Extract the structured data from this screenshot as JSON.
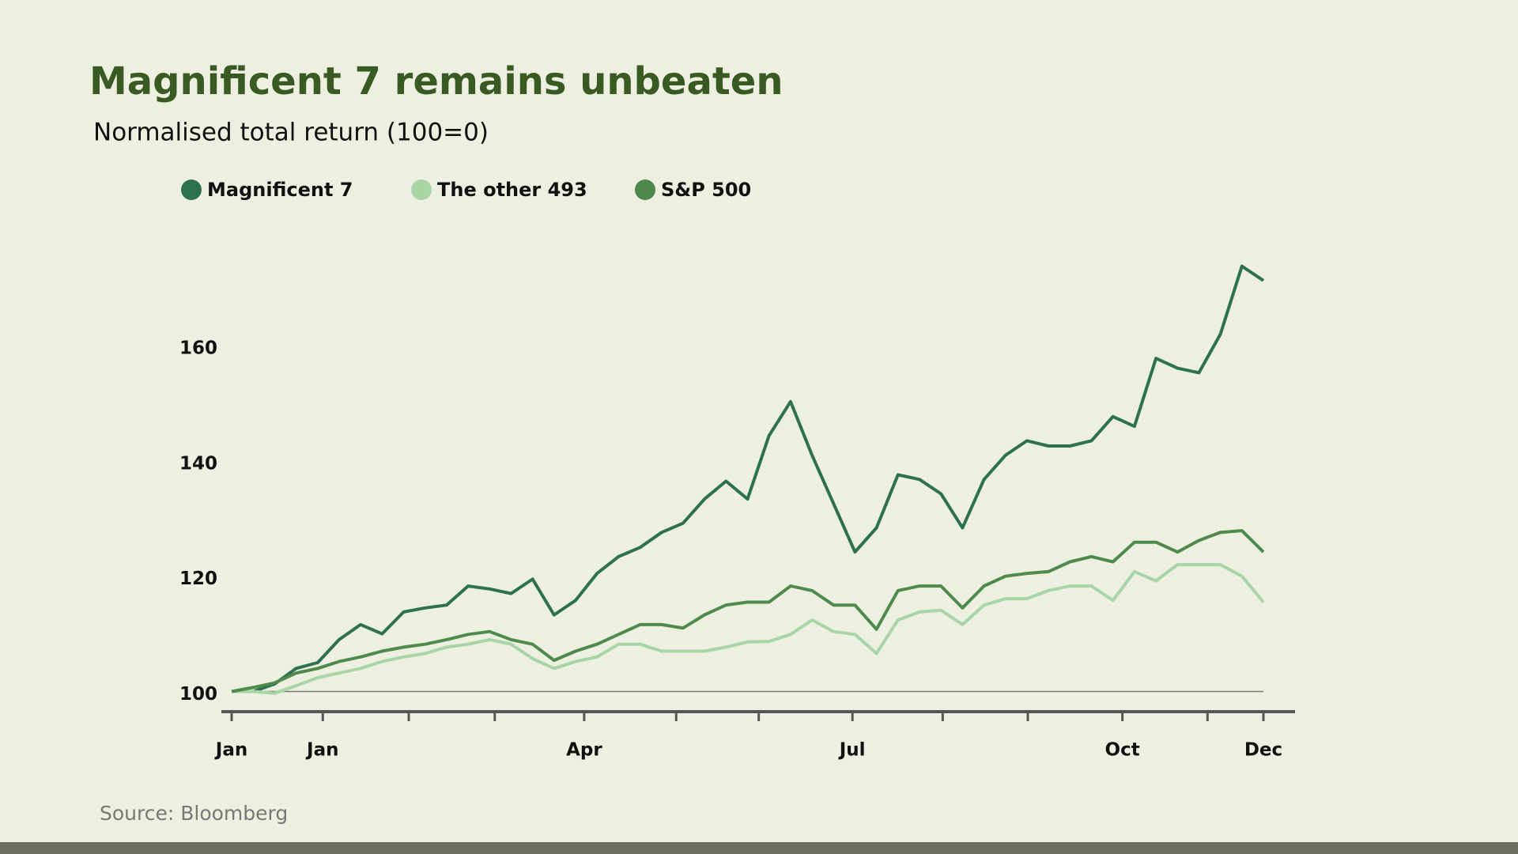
{
  "chart_data": {
    "type": "line",
    "title": "Magnificent 7 remains unbeaten",
    "subtitle": "Normalised total return (100=0)",
    "source": "Source: Bloomberg",
    "x": [
      0,
      0.25,
      0.5,
      0.75,
      1,
      1.25,
      1.5,
      1.75,
      2,
      2.25,
      2.5,
      2.75,
      3,
      3.25,
      3.5,
      3.75,
      4,
      4.25,
      4.5,
      4.75,
      5,
      5.25,
      5.5,
      5.75,
      6,
      6.25,
      6.5,
      6.75,
      7,
      7.25,
      7.5,
      7.75,
      8,
      8.25,
      8.5,
      8.75,
      9,
      9.25,
      9.5,
      9.75,
      10,
      10.25,
      10.5,
      10.75,
      11,
      11.25,
      11.5,
      11.75,
      12
    ],
    "xlim": [
      0,
      12
    ],
    "xticks": [
      {
        "value": 0,
        "label": "Jan"
      },
      {
        "value": 1.06,
        "label": "Jan"
      },
      {
        "value": 2.06,
        "label": null
      },
      {
        "value": 3.06,
        "label": null
      },
      {
        "value": 4.1,
        "label": "Apr"
      },
      {
        "value": 5.17,
        "label": null
      },
      {
        "value": 6.13,
        "label": null
      },
      {
        "value": 7.22,
        "label": "Jul"
      },
      {
        "value": 8.27,
        "label": null
      },
      {
        "value": 9.26,
        "label": null
      },
      {
        "value": 10.36,
        "label": "Oct"
      },
      {
        "value": 11.35,
        "label": null
      },
      {
        "value": 12,
        "label": "Dec"
      }
    ],
    "ylim": [
      96.5,
      178
    ],
    "yticks": [
      100,
      120,
      140,
      160
    ],
    "reference_line": 100,
    "series": [
      {
        "name": "Magnificent 7",
        "color": "#2e7150",
        "values": [
          100,
          100,
          101.3,
          104,
          105,
          109,
          111.6,
          110,
          113.8,
          114.5,
          115,
          118.3,
          117.8,
          117,
          119.5,
          113.3,
          115.8,
          120.5,
          123.4,
          125,
          127.6,
          129.2,
          133.4,
          136.5,
          133.4,
          144.4,
          150.3,
          141,
          132.6,
          124.2,
          128.4,
          137.6,
          136.8,
          134.3,
          128.4,
          136.8,
          141,
          143.5,
          142.6,
          142.6,
          143.5,
          147.7,
          146,
          157.8,
          156.1,
          155.3,
          162,
          173.8,
          171.3
        ]
      },
      {
        "name": "The other 493",
        "color": "#a8d5a6",
        "values": [
          100,
          100,
          99.7,
          101,
          102.4,
          103.2,
          104,
          105.2,
          106,
          106.6,
          107.7,
          108.2,
          109,
          108.2,
          105.7,
          104,
          105.2,
          106,
          108.2,
          108.2,
          107,
          107,
          107,
          107.7,
          108.6,
          108.7,
          109.9,
          112.4,
          110.4,
          109.9,
          106.6,
          112.4,
          113.8,
          114.1,
          111.6,
          115,
          116.1,
          116.1,
          117.5,
          118.3,
          118.3,
          115.8,
          120.8,
          119.2,
          122,
          122,
          122,
          120,
          115.5
        ]
      },
      {
        "name": "S&P 500",
        "color": "#4e8a4c",
        "values": [
          100,
          100.7,
          101.5,
          103.2,
          104,
          105.2,
          106,
          107,
          107.7,
          108.2,
          109,
          109.9,
          110.4,
          109,
          108.2,
          105.4,
          107,
          108.2,
          109.9,
          111.6,
          111.6,
          111,
          113.3,
          115,
          115.5,
          115.5,
          118.3,
          117.5,
          115,
          115,
          110.8,
          117.5,
          118.3,
          118.3,
          114.5,
          118.3,
          120,
          120.5,
          120.8,
          122.5,
          123.4,
          122.5,
          125.9,
          125.9,
          124.2,
          126.2,
          127.6,
          127.9,
          124.2
        ]
      }
    ]
  }
}
